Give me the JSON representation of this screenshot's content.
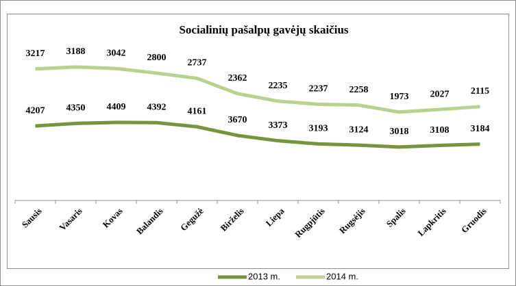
{
  "chart_data": {
    "type": "line",
    "stacked": true,
    "title": "Socialinių pašalpų gavėjų skaičius",
    "categories": [
      "Sausis",
      "Vasaris",
      "Kovas",
      "Balandis",
      "Gegužė",
      "Birželis",
      "Liepa",
      "Rugpjūtis",
      "Rugsėjis",
      "Spalis",
      "Lapkritis",
      "Gruodis"
    ],
    "ylim": [
      0,
      9000
    ],
    "legend": "bottom",
    "series": [
      {
        "name": "2013 m.",
        "color": "#77933c",
        "values": [
          4207,
          4350,
          4409,
          4392,
          4161,
          3670,
          3373,
          3193,
          3124,
          3018,
          3108,
          3184
        ]
      },
      {
        "name": "2014 m.",
        "color": "#b9d08f",
        "values": [
          3217,
          3188,
          3042,
          2800,
          2737,
          2362,
          2235,
          2237,
          2258,
          1973,
          2027,
          2115
        ]
      }
    ]
  }
}
